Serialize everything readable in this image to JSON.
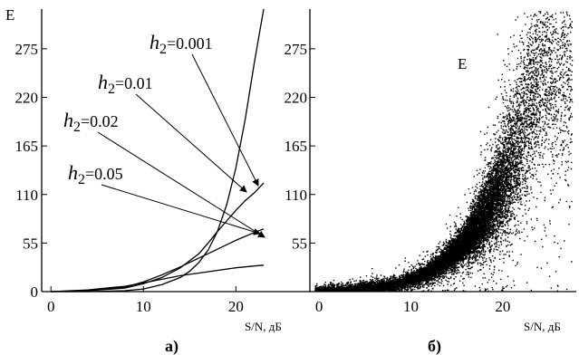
{
  "chart_data": [
    {
      "type": "line",
      "panel_label": "а)",
      "ylabel": "E",
      "xlabel": "S/N, дБ",
      "xlim": [
        -1,
        28
      ],
      "ylim": [
        0,
        320
      ],
      "xticks": [
        "0",
        "10",
        "20"
      ],
      "yticks": [
        "0",
        "55",
        "110",
        "165",
        "220",
        "275"
      ],
      "grid": false,
      "series": [
        {
          "name": "h2 =0.001",
          "label_prefix": "h",
          "label_sub": "2",
          "label_value": "=0.001",
          "x": [
            0,
            4,
            8,
            10,
            12,
            14,
            15,
            16,
            17,
            18,
            19,
            20,
            21,
            22,
            23
          ],
          "y": [
            0,
            0,
            1,
            3,
            8,
            16,
            23,
            33,
            47,
            68,
            98,
            140,
            195,
            260,
            320
          ]
        },
        {
          "name": "h2 =0.01",
          "label_prefix": "h",
          "label_sub": "2",
          "label_value": "=0.01",
          "x": [
            0,
            4,
            8,
            10,
            12,
            14,
            16,
            17,
            18,
            19,
            20,
            21,
            22,
            23
          ],
          "y": [
            0,
            1,
            4,
            9,
            16,
            27,
            43,
            55,
            68,
            80,
            92,
            103,
            112,
            123
          ]
        },
        {
          "name": "h2 =0.02",
          "label_prefix": "h",
          "label_sub": "2",
          "label_value": "=0.02",
          "x": [
            0,
            4,
            8,
            10,
            12,
            14,
            16,
            18,
            20,
            22,
            23
          ],
          "y": [
            0,
            1,
            5,
            11,
            19,
            28,
            38,
            48,
            58,
            67,
            71
          ]
        },
        {
          "name": "h2 =0.05",
          "label_prefix": "h",
          "label_sub": "2",
          "label_value": "=0.05",
          "x": [
            0,
            4,
            8,
            10,
            12,
            14,
            16,
            18,
            20,
            22,
            23
          ],
          "y": [
            0,
            2,
            6,
            10,
            14,
            18,
            21,
            24,
            27,
            29,
            30
          ]
        }
      ]
    },
    {
      "type": "scatter",
      "panel_label": "б)",
      "annotation": "E",
      "xlabel": "S/N, дБ",
      "xlim": [
        -1,
        28
      ],
      "ylim": [
        0,
        320
      ],
      "xticks": [
        "0",
        "10",
        "20"
      ],
      "yticks": [
        "55",
        "110",
        "165",
        "220",
        "275"
      ],
      "grid": false,
      "point_color": "#000000",
      "trend": {
        "x": [
          0,
          4,
          8,
          10,
          12,
          14,
          16,
          17,
          18,
          19,
          20,
          21,
          22,
          23,
          24
        ],
        "y": [
          1,
          3,
          8,
          14,
          23,
          38,
          58,
          72,
          88,
          105,
          125,
          150,
          180,
          215,
          250
        ]
      },
      "x_density": {
        "x": [
          0,
          10,
          13,
          16,
          19,
          22,
          26
        ],
        "weight": [
          1,
          1.6,
          3,
          5,
          4.5,
          2,
          1
        ]
      },
      "point_count": 14000
    }
  ]
}
